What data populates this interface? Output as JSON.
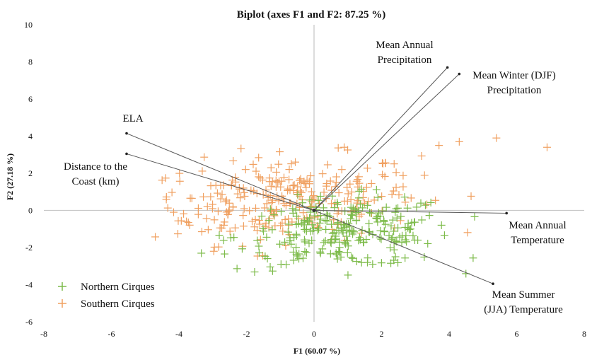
{
  "chart_data": {
    "type": "scatter",
    "title": "Biplot (axes F1 and F2: 87.25 %)",
    "xlabel": "F1 (60.07 %)",
    "ylabel": "F2 (27.18 %)",
    "xlim": [
      -8,
      8
    ],
    "ylim": [
      -6,
      10
    ],
    "x_ticks": [
      "-8",
      "-6",
      "-4",
      "-2",
      "0",
      "2",
      "4",
      "6",
      "8"
    ],
    "y_ticks": [
      "-6",
      "-4",
      "-2",
      "0",
      "2",
      "4",
      "6",
      "8",
      "10"
    ],
    "grid": false,
    "legend_position": "bottom-left",
    "colors": {
      "northern": "#7dbb4a",
      "southern": "#f0a060",
      "vector": "#555555",
      "axis": "#c8c8c8"
    },
    "vectors": [
      {
        "lines": [
          "Mean Annual",
          "Precipitation"
        ],
        "x": 3.95,
        "y": 7.7
      },
      {
        "lines": [
          "Mean Winter (DJF)",
          "Precipitation"
        ],
        "x": 4.3,
        "y": 7.35
      },
      {
        "lines": [
          "ELA"
        ],
        "x": -5.55,
        "y": 4.15
      },
      {
        "lines": [
          "Distance to the",
          "Coast (km)"
        ],
        "x": -5.55,
        "y": 3.05
      },
      {
        "lines": [
          "Mean Annual",
          "Temperature"
        ],
        "x": 5.7,
        "y": -0.15
      },
      {
        "lines": [
          "Mean Summer",
          "(JJA) Temperature"
        ],
        "x": 5.3,
        "y": -3.95
      }
    ],
    "series": [
      {
        "name": "Northern Cirques",
        "marker": "+",
        "color": "#7dbb4a",
        "count": 260,
        "x_range": [
          -3.5,
          4.8
        ],
        "y_range": [
          -3.5,
          1.8
        ],
        "center": [
          0.9,
          -1.2
        ]
      },
      {
        "name": "Southern Cirques",
        "marker": "+",
        "color": "#f0a060",
        "count": 280,
        "x_range": [
          -4.8,
          7.1
        ],
        "y_range": [
          -3.4,
          3.9
        ],
        "center": [
          -0.9,
          0.6
        ]
      }
    ]
  }
}
